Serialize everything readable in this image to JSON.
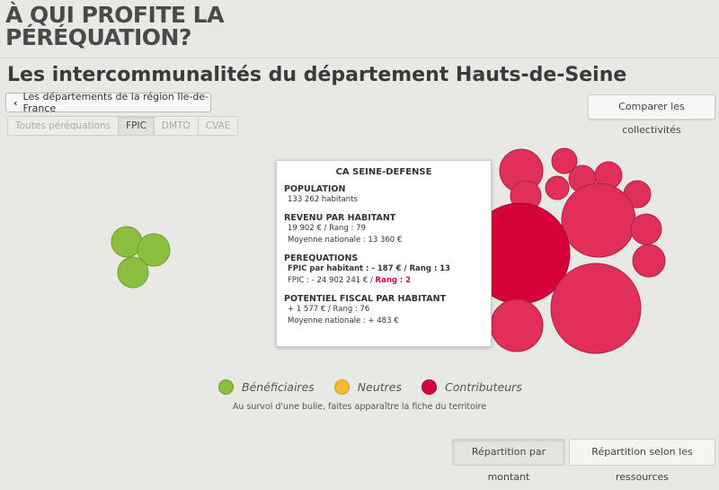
{
  "brand": {
    "line1": "À QUI PROFITE LA",
    "line2": "PÉRÉQUATION?"
  },
  "page_title": "Les intercommunalités du département Hauts-de-Seine",
  "back_button": "Les départements de la région Ile-de-France",
  "tabs": [
    {
      "label": "Toutes péréquations",
      "active": false
    },
    {
      "label": "FPIC",
      "active": true
    },
    {
      "label": "DMTO",
      "active": false
    },
    {
      "label": "CVAE",
      "active": false
    }
  ],
  "compare_button": "Comparer les collectivités",
  "tooltip": {
    "title": "CA SEINE-DEFENSE",
    "population_label": "POPULATION",
    "population_value": "133 262 habitants",
    "revenu_label": "REVENU PAR HABITANT",
    "revenu_value": "19 902 € / Rang : 79",
    "revenu_moyenne": "Moyenne nationale : 13 360 €",
    "perequations_label": "PEREQUATIONS",
    "fpic_hab_label": "FPIC par habitant : ",
    "fpic_hab_value": "- 187 € / Rang : 13",
    "fpic_label": "FPIC : - 24 902 241 € / ",
    "fpic_rang": "Rang : 2",
    "potentiel_label": "POTENTIEL FISCAL PAR HABITANT",
    "potentiel_value": "+ 1 577 € / Rang : 76",
    "potentiel_moyenne": "Moyenne nationale : + 483 €"
  },
  "legend": [
    {
      "label": "Bénéficiaires",
      "color": "#8cbf3f"
    },
    {
      "label": "Neutres",
      "color": "#f2bc37"
    },
    {
      "label": "Contributeurs",
      "color": "#d6003a"
    }
  ],
  "hint": "Au survol d'une bulle, faites apparaître la fiche du territoire",
  "bottom_buttons": [
    {
      "label": "Répartition par montant",
      "active": true
    },
    {
      "label": "Répartition selon les ressources",
      "active": false
    }
  ],
  "colors": {
    "beneficiaire": "#8cbf3f",
    "contributeur": "#d6003a",
    "contributeur_light": "#e0305a"
  }
}
